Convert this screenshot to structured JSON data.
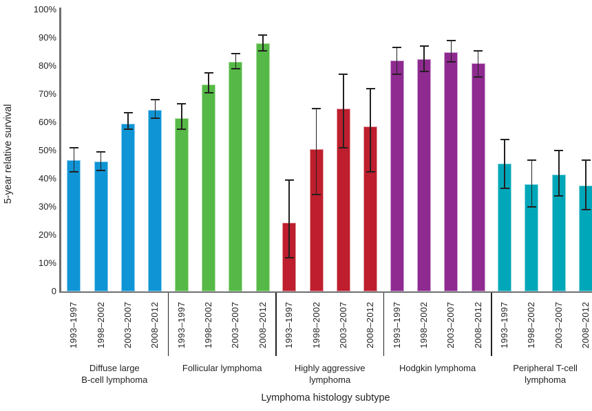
{
  "chart_data": {
    "type": "bar",
    "title": "",
    "xlabel": "Lymphoma histology subtype",
    "ylabel": "5-year relative survival",
    "ylim": [
      0,
      100
    ],
    "grid": false,
    "legend": "none",
    "error_bars": true,
    "y_ticks": [
      {
        "label": "100%",
        "value": 100
      },
      {
        "label": "90%",
        "value": 90
      },
      {
        "label": "80%",
        "value": 80
      },
      {
        "label": "70%",
        "value": 70
      },
      {
        "label": "60%",
        "value": 60
      },
      {
        "label": "50%",
        "value": 50
      },
      {
        "label": "40%",
        "value": 40
      },
      {
        "label": "30%",
        "value": 30
      },
      {
        "label": "20%",
        "value": 20
      },
      {
        "label": "10%",
        "value": 10
      },
      {
        "label": "0",
        "value": 0
      }
    ],
    "periods": [
      "1993–1997",
      "1998–2002",
      "2003–2007",
      "2008–2012"
    ],
    "groups": [
      {
        "name": "Diffuse large B-cell lymphoma",
        "label_lines": [
          "Diffuse large",
          "B-cell lymphoma"
        ],
        "color": "#0f95d5",
        "edge_color": "#8fcdee",
        "values": [
          46.5,
          46.0,
          59.5,
          64.5
        ],
        "ci_low": [
          42.5,
          43.0,
          57.5,
          61.5
        ],
        "ci_high": [
          51.0,
          49.5,
          63.5,
          68.0
        ]
      },
      {
        "name": "Follicular lymphoma",
        "label_lines": [
          "Follicular lymphoma"
        ],
        "color": "#56b947",
        "edge_color": "#abdd9f",
        "values": [
          61.5,
          73.5,
          81.5,
          88.0
        ],
        "ci_low": [
          57.5,
          70.5,
          79.0,
          85.5
        ],
        "ci_high": [
          66.5,
          77.5,
          84.5,
          91.0
        ]
      },
      {
        "name": "Highly aggressive lymphoma",
        "label_lines": [
          "Highly aggressive",
          "lymphoma"
        ],
        "color": "#be1e2d",
        "edge_color": "#e2a0a5",
        "values": [
          24.5,
          50.5,
          65.0,
          58.5
        ],
        "ci_low": [
          12.0,
          34.5,
          51.0,
          42.5
        ],
        "ci_high": [
          39.5,
          65.0,
          77.0,
          72.0
        ]
      },
      {
        "name": "Hodgkin lymphoma",
        "label_lines": [
          "Hodgkin lymphoma"
        ],
        "color": "#8e2a90",
        "edge_color": "#d0a4d1",
        "values": [
          82.0,
          82.5,
          85.0,
          81.0
        ],
        "ci_low": [
          77.0,
          78.0,
          81.5,
          76.0
        ],
        "ci_high": [
          86.5,
          87.0,
          89.0,
          85.5
        ]
      },
      {
        "name": "Peripheral T-cell lymphoma",
        "label_lines": [
          "Peripheral T-cell",
          "lymphoma"
        ],
        "color": "#00a7b8",
        "edge_color": "#8ad6dd",
        "values": [
          45.5,
          38.0,
          41.5,
          37.5
        ],
        "ci_low": [
          36.5,
          30.0,
          34.0,
          29.0
        ],
        "ci_high": [
          54.0,
          46.5,
          50.0,
          46.5
        ]
      }
    ],
    "colors": {
      "axis": "#6d6e71",
      "error_bar": "#231f20",
      "separator": "#231f20",
      "text": "#231f20"
    }
  }
}
